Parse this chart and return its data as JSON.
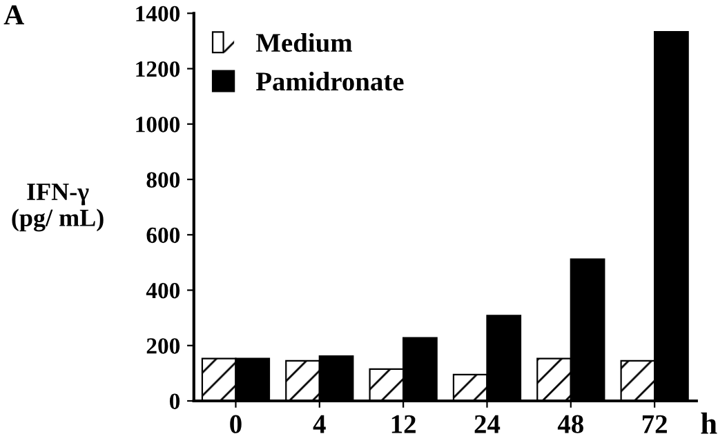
{
  "chart_data": {
    "type": "bar",
    "annotations": [
      "A"
    ],
    "xlabel": "h",
    "ylabel": "IFN-γ\n(pg/ mL)",
    "categories": [
      "0",
      "4",
      "12",
      "24",
      "48",
      "72"
    ],
    "series": [
      {
        "name": "Medium",
        "color": "#ffffff",
        "values": [
          153,
          145,
          115,
          95,
          153,
          145
        ]
      },
      {
        "name": "Pamidronate",
        "color": "#000000",
        "values": [
          153,
          162,
          228,
          308,
          512,
          1333
        ]
      }
    ],
    "ylim": [
      0,
      1400
    ],
    "yticks": [
      0,
      200,
      400,
      600,
      800,
      1000,
      1200,
      1400
    ],
    "grid": false,
    "legend": "top left"
  }
}
